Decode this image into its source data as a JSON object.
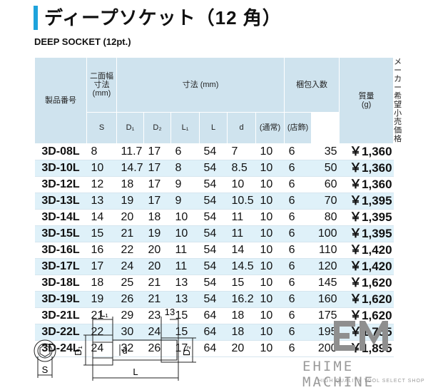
{
  "header": {
    "title": "ディープソケット（12 角）",
    "subtitle": "DEEP SOCKET (12pt.)"
  },
  "table": {
    "header_top": [
      [
        "製品番号"
      ],
      [
        "二面幅",
        "寸法",
        "(mm)"
      ],
      [
        "寸法 (mm)"
      ],
      [
        "梱包入数"
      ],
      [
        "質量",
        "(g)"
      ],
      [
        "メーカー希望",
        "小売価格"
      ]
    ],
    "header_sub": [
      "S",
      "D₁",
      "D₂",
      "L₁",
      "L",
      "d",
      "(通常)",
      "(店飾)"
    ],
    "rows": [
      [
        "3D-08L",
        8,
        11.7,
        17,
        6,
        54,
        7,
        10,
        6,
        35,
        "￥1,360"
      ],
      [
        "3D-10L",
        10,
        14.7,
        17,
        8,
        54,
        8.5,
        10,
        6,
        50,
        "￥1,360"
      ],
      [
        "3D-12L",
        12,
        18,
        17,
        9,
        54,
        10,
        10,
        6,
        60,
        "￥1,360"
      ],
      [
        "3D-13L",
        13,
        19,
        17,
        9,
        54,
        10.5,
        10,
        6,
        70,
        "￥1,395"
      ],
      [
        "3D-14L",
        14,
        20,
        18,
        10,
        54,
        11,
        10,
        6,
        80,
        "￥1,395"
      ],
      [
        "3D-15L",
        15,
        21,
        19,
        10,
        54,
        11,
        10,
        6,
        100,
        "￥1,395"
      ],
      [
        "3D-16L",
        16,
        22,
        20,
        11,
        54,
        14,
        10,
        6,
        110,
        "￥1,420"
      ],
      [
        "3D-17L",
        17,
        24,
        20,
        11,
        54,
        14.5,
        10,
        6,
        120,
        "￥1,420"
      ],
      [
        "3D-18L",
        18,
        25,
        21,
        13,
        54,
        15,
        10,
        6,
        145,
        "￥1,620"
      ],
      [
        "3D-19L",
        19,
        26,
        21,
        13,
        54,
        16.2,
        10,
        6,
        160,
        "￥1,620"
      ],
      [
        "3D-21L",
        21,
        29,
        23,
        15,
        64,
        18,
        10,
        6,
        175,
        "￥1,620"
      ],
      [
        "3D-22L",
        22,
        30,
        24,
        15,
        64,
        18,
        10,
        6,
        195,
        "￥1,755"
      ],
      [
        "3D-24L",
        24,
        32,
        26,
        17,
        64,
        20,
        10,
        6,
        200,
        "￥1,895"
      ]
    ]
  },
  "diagram": {
    "l1": "L₁",
    "thirteen": "13",
    "d1": "D₁",
    "d": "d",
    "d2": "D₂",
    "l": "L",
    "s": "S"
  },
  "logo": {
    "name": "EHIME MACHINE",
    "tagline": "HIGH QUALITY TOOL SELECT SHOP"
  }
}
